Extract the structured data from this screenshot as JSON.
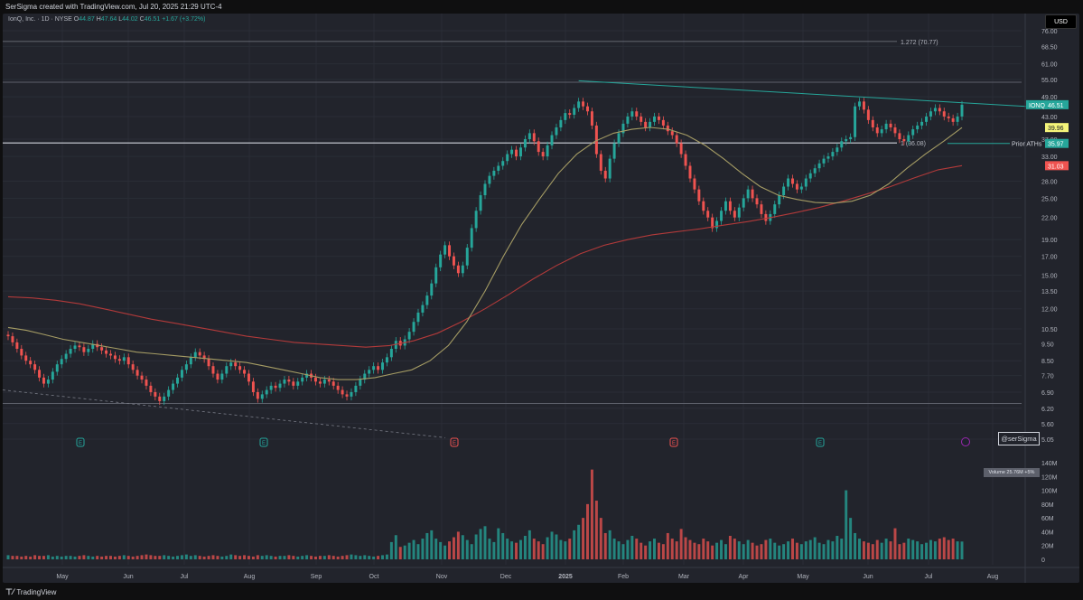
{
  "header": {
    "credit": "SerSigma created with TradingView.com, Jul 20, 2025 21:29 UTC-4"
  },
  "legend": {
    "symbol": "IonQ, Inc. · 1D · NYSE",
    "o_label": "O",
    "o_value": "44.87",
    "h_label": "H",
    "h_value": "47.64",
    "l_label": "L",
    "l_value": "44.02",
    "c_label": "C",
    "c_value": "46.51",
    "change": "+1.67 (+3.72%)"
  },
  "currency_button": "USD",
  "watermark": "@serSigma",
  "volume_tag": "Volume  25.76M  +5%",
  "footer": {
    "brand": "TradingView"
  },
  "colors": {
    "up": "#26a69a",
    "down": "#ef5350",
    "sma_short": "#a59c64",
    "sma_long": "#b23a3a",
    "trendline": "#26a69a",
    "background": "#22242c"
  },
  "chart_data": {
    "type": "candlestick",
    "price_axis": {
      "scale": "log",
      "tick_labels": [
        "76.00",
        "68.50",
        "61.00",
        "55.00",
        "49.00",
        "43.00",
        "37.00",
        "33.00",
        "28.00",
        "25.00",
        "22.00",
        "19.00",
        "17.00",
        "15.00",
        "13.50",
        "12.00",
        "10.50",
        "9.50",
        "8.50",
        "7.70",
        "6.90",
        "6.20",
        "5.60",
        "5.05"
      ]
    },
    "time_axis": {
      "tick_labels": [
        "May",
        "Jun",
        "Jul",
        "Aug",
        "Sep",
        "Oct",
        "Nov",
        "Dec",
        "2025",
        "Feb",
        "Mar",
        "Apr",
        "May",
        "Jun",
        "Jul",
        "Aug"
      ]
    },
    "volume_axis": {
      "tick_labels": [
        "140M",
        "120M",
        "100M",
        "80M",
        "60M",
        "40M",
        "20M",
        "0"
      ]
    },
    "price_labels": [
      {
        "text": "IONQ",
        "value": "46.51",
        "price": 46.51,
        "color": "#26a69a"
      },
      {
        "text": "",
        "value": "39.96",
        "price": 39.96,
        "color": "#f5f57a"
      },
      {
        "text": "Prior ATHs",
        "value": "35.97",
        "price": 35.97,
        "color": "#26a69a"
      },
      {
        "text": "",
        "value": "31.03",
        "price": 31.03,
        "color": "#ef5350"
      }
    ],
    "fib_levels": [
      {
        "label": "1.272 (70.77)",
        "price": 70.77
      },
      {
        "label": "1 (36.08)",
        "price": 36.08
      }
    ],
    "horizontal_lines": [
      54.0,
      6.4
    ],
    "closes": [
      10.0,
      9.6,
      9.2,
      8.8,
      8.5,
      8.3,
      8.0,
      7.6,
      7.3,
      7.5,
      7.9,
      8.3,
      8.6,
      8.9,
      9.2,
      9.4,
      9.3,
      9.0,
      9.2,
      9.5,
      9.3,
      9.1,
      8.9,
      8.8,
      8.6,
      8.5,
      8.7,
      8.3,
      8.0,
      7.7,
      7.5,
      7.2,
      6.9,
      6.7,
      6.5,
      6.7,
      7.0,
      7.3,
      7.6,
      8.0,
      8.3,
      8.7,
      9.0,
      8.8,
      8.6,
      8.2,
      7.8,
      7.5,
      7.8,
      8.2,
      8.4,
      8.2,
      8.0,
      7.8,
      7.4,
      6.9,
      6.6,
      6.8,
      7.0,
      7.2,
      7.1,
      7.3,
      7.5,
      7.4,
      7.2,
      7.4,
      7.6,
      7.8,
      7.6,
      7.4,
      7.3,
      7.5,
      7.4,
      7.2,
      7.0,
      6.8,
      6.7,
      6.9,
      7.2,
      7.5,
      7.8,
      8.0,
      8.2,
      8.0,
      8.4,
      8.7,
      9.2,
      9.7,
      9.4,
      9.8,
      10.3,
      11.0,
      11.7,
      12.3,
      13.1,
      14.2,
      15.8,
      17.2,
      18.3,
      17.0,
      16.0,
      15.2,
      16.0,
      18.0,
      20.5,
      23.0,
      25.5,
      27.5,
      29.0,
      30.0,
      31.0,
      32.0,
      33.5,
      34.5,
      33.0,
      35.0,
      37.0,
      38.5,
      36.5,
      34.0,
      33.0,
      35.5,
      38.0,
      40.0,
      42.0,
      44.0,
      43.5,
      45.5,
      47.5,
      46.0,
      44.5,
      40.5,
      33.5,
      30.0,
      28.5,
      32.5,
      36.0,
      38.5,
      41.0,
      43.0,
      44.5,
      43.0,
      41.5,
      40.0,
      41.5,
      43.0,
      42.0,
      40.5,
      39.0,
      38.0,
      36.0,
      33.5,
      31.0,
      28.5,
      26.5,
      24.5,
      23.0,
      22.0,
      20.5,
      21.5,
      23.0,
      24.5,
      23.0,
      22.0,
      23.5,
      25.0,
      26.5,
      25.0,
      24.0,
      22.5,
      21.5,
      22.5,
      24.0,
      25.5,
      27.0,
      28.5,
      27.5,
      26.5,
      27.0,
      28.5,
      29.5,
      30.5,
      31.5,
      32.5,
      33.0,
      34.0,
      35.0,
      36.5,
      37.0,
      37.5,
      46.0,
      47.5,
      45.0,
      42.0,
      40.0,
      38.5,
      39.5,
      41.0,
      40.0,
      38.5,
      37.0,
      36.5,
      38.0,
      39.5,
      40.5,
      41.5,
      43.0,
      44.5,
      45.5,
      44.5,
      43.0,
      42.5,
      41.5,
      43.0,
      46.51
    ],
    "sma_short": [
      10.6,
      10.4,
      10.1,
      9.8,
      9.6,
      9.4,
      9.2,
      9.0,
      8.9,
      8.8,
      8.7,
      8.6,
      8.5,
      8.4,
      8.2,
      8.0,
      7.8,
      7.6,
      7.5,
      7.5,
      7.6,
      7.8,
      8.0,
      8.5,
      9.4,
      11.0,
      13.5,
      17.0,
      21.0,
      25.0,
      29.5,
      33.5,
      36.5,
      38.5,
      39.5,
      40.0,
      39.5,
      38.0,
      35.5,
      32.5,
      29.5,
      27.0,
      25.5,
      24.8,
      24.3,
      24.2,
      24.5,
      25.5,
      27.5,
      30.5,
      33.5,
      36.5,
      39.96
    ],
    "sma_long": [
      13.0,
      12.9,
      12.7,
      12.4,
      12.0,
      11.6,
      11.2,
      10.9,
      10.6,
      10.3,
      10.0,
      9.8,
      9.6,
      9.5,
      9.4,
      9.3,
      9.4,
      9.7,
      10.2,
      11.0,
      12.0,
      13.2,
      14.6,
      16.0,
      17.3,
      18.3,
      19.0,
      19.6,
      20.0,
      20.4,
      20.9,
      21.4,
      22.0,
      22.7,
      23.5,
      24.5,
      25.7,
      27.0,
      28.6,
      30.2,
      31.03
    ],
    "volumes": [
      6,
      5,
      5,
      4,
      5,
      4,
      6,
      5,
      5,
      6,
      4,
      5,
      4,
      5,
      5,
      4,
      5,
      6,
      5,
      4,
      5,
      4,
      5,
      5,
      4,
      5,
      6,
      5,
      4,
      5,
      6,
      7,
      6,
      5,
      5,
      6,
      5,
      4,
      5,
      6,
      7,
      5,
      6,
      5,
      4,
      5,
      6,
      5,
      4,
      5,
      7,
      6,
      5,
      6,
      5,
      4,
      6,
      5,
      6,
      5,
      4,
      5,
      5,
      6,
      5,
      4,
      5,
      6,
      5,
      4,
      5,
      5,
      6,
      5,
      4,
      5,
      6,
      7,
      6,
      5,
      6,
      5,
      4,
      5,
      6,
      7,
      25,
      35,
      18,
      20,
      24,
      28,
      22,
      30,
      38,
      42,
      30,
      25,
      20,
      26,
      32,
      40,
      35,
      28,
      22,
      36,
      44,
      48,
      30,
      25,
      45,
      38,
      30,
      26,
      24,
      28,
      34,
      42,
      30,
      26,
      22,
      32,
      40,
      36,
      28,
      26,
      30,
      42,
      50,
      60,
      80,
      130,
      85,
      60,
      38,
      42,
      30,
      26,
      22,
      28,
      34,
      30,
      24,
      20,
      26,
      30,
      24,
      22,
      38,
      30,
      26,
      44,
      32,
      28,
      24,
      22,
      30,
      26,
      20,
      24,
      28,
      22,
      34,
      30,
      26,
      22,
      28,
      24,
      20,
      22,
      28,
      30,
      24,
      20,
      22,
      26,
      30,
      24,
      22,
      26,
      28,
      32,
      24,
      22,
      28,
      26,
      34,
      30,
      100,
      60,
      38,
      30,
      26,
      24,
      22,
      28,
      24,
      30,
      26,
      45,
      22,
      24,
      30,
      28,
      26,
      22,
      24,
      28,
      26,
      30,
      32,
      28,
      30,
      26,
      25.76
    ]
  }
}
